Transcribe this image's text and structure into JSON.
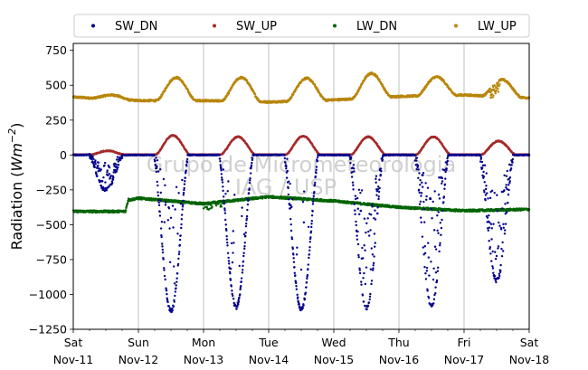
{
  "chart_data": {
    "type": "scatter",
    "ylabel": "Radiation (W m⁻²)",
    "ylabel_prefix": "Radiation (",
    "ylabel_unit_base": "Wm",
    "ylabel_unit_exp": "−2",
    "ylabel_suffix": ")",
    "ylim": [
      -1250,
      800
    ],
    "yticks": [
      -1250,
      -1000,
      -750,
      -500,
      -250,
      0,
      250,
      500,
      750
    ],
    "ytick_labels": [
      "−1250",
      "−1000",
      "−750",
      "−500",
      "−250",
      "0",
      "250",
      "500",
      "750"
    ],
    "xlim_days": [
      0,
      7
    ],
    "xticks": [
      {
        "day": 0,
        "weekday": "Sat",
        "date": "Nov-11"
      },
      {
        "day": 1,
        "weekday": "Sun",
        "date": "Nov-12"
      },
      {
        "day": 2,
        "weekday": "Mon",
        "date": "Nov-13"
      },
      {
        "day": 3,
        "weekday": "Tue",
        "date": "Nov-14"
      },
      {
        "day": 4,
        "weekday": "Wed",
        "date": "Nov-15"
      },
      {
        "day": 5,
        "weekday": "Thu",
        "date": "Nov-16"
      },
      {
        "day": 6,
        "weekday": "Fri",
        "date": "Nov-17"
      },
      {
        "day": 7,
        "weekday": "Sat",
        "date": "Nov-18"
      }
    ],
    "grid": "vertical",
    "legend": "top, outside, 4 columns",
    "watermark_lines": [
      "Grupo de Micrometeorologia",
      "IAG / USP"
    ],
    "series": [
      {
        "name": "SW_DN",
        "color": "#00008b",
        "daily_peak": [
          -250,
          -1120,
          -1090,
          -1110,
          -1100,
          -1080,
          -900
        ]
      },
      {
        "name": "SW_UP",
        "color": "#a52a2a",
        "daily_peak": [
          30,
          140,
          130,
          135,
          130,
          130,
          100
        ]
      },
      {
        "name": "LW_DN",
        "color": "#006400",
        "daily_values": [
          -405,
          -310,
          -350,
          -300,
          -330,
          -375,
          -400,
          -390
        ]
      },
      {
        "name": "LW_UP",
        "color": "#b8860b",
        "daily_peak": [
          430,
          555,
          555,
          550,
          585,
          560,
          540
        ],
        "night_level": [
          415,
          390,
          390,
          380,
          395,
          420,
          430,
          410
        ]
      }
    ]
  }
}
